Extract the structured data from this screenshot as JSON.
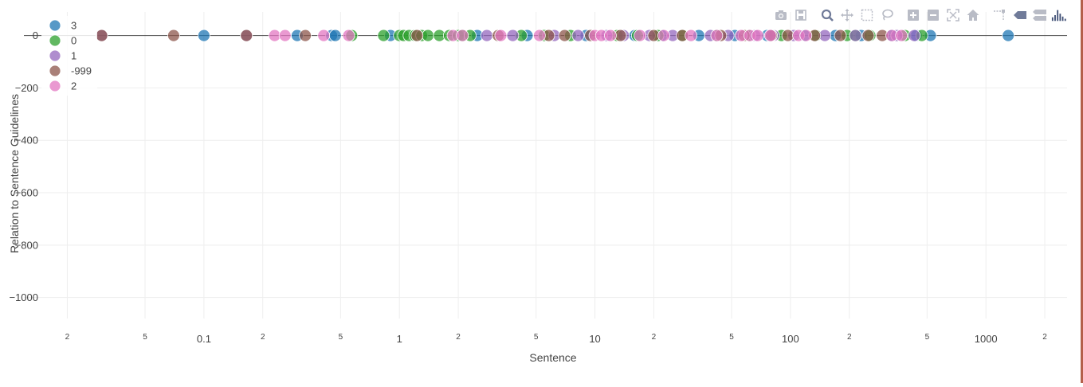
{
  "chart_data": {
    "type": "scatter",
    "title": "",
    "xlabel": "Sentence",
    "ylabel": "Relation to Sentence Guidelines",
    "x_scale": "log",
    "xlim": [
      0.012,
      2600
    ],
    "ylim": [
      -1080,
      90
    ],
    "grid": true,
    "legend_position": "top-left",
    "x_ticks": [
      {
        "value": 0.02,
        "label": "2"
      },
      {
        "value": 0.05,
        "label": "5"
      },
      {
        "value": 0.1,
        "label": "0.1"
      },
      {
        "value": 0.2,
        "label": "2"
      },
      {
        "value": 0.5,
        "label": "5"
      },
      {
        "value": 1,
        "label": "1"
      },
      {
        "value": 2,
        "label": "2"
      },
      {
        "value": 5,
        "label": "5"
      },
      {
        "value": 10,
        "label": "10"
      },
      {
        "value": 20,
        "label": "2"
      },
      {
        "value": 50,
        "label": "5"
      },
      {
        "value": 100,
        "label": "100"
      },
      {
        "value": 200,
        "label": "2"
      },
      {
        "value": 500,
        "label": "5"
      },
      {
        "value": 1000,
        "label": "1000"
      },
      {
        "value": 2000,
        "label": "2"
      }
    ],
    "y_ticks": [
      {
        "value": 0,
        "label": "0"
      },
      {
        "value": -200,
        "label": "−200"
      },
      {
        "value": -400,
        "label": "−400"
      },
      {
        "value": -600,
        "label": "−600"
      },
      {
        "value": -800,
        "label": "−800"
      },
      {
        "value": -1000,
        "label": "−1000"
      }
    ],
    "series": [
      {
        "name": "3",
        "color": "#1f77b4",
        "x": [
          0.1,
          0.3,
          0.45,
          0.47,
          0.9,
          2.5,
          4.5,
          9,
          16,
          22,
          34,
          52,
          76,
          118,
          170,
          230,
          330,
          440,
          520,
          1300
        ],
        "y": [
          0,
          0,
          0,
          0,
          0,
          0,
          0,
          0,
          0,
          0,
          0,
          0,
          0,
          0,
          0,
          0,
          0,
          0,
          0,
          0
        ]
      },
      {
        "name": "0",
        "color": "#2ca02c",
        "x": [
          0.57,
          0.83,
          1,
          1.05,
          1.12,
          1.2,
          1.3,
          1.4,
          1.6,
          1.8,
          2.0,
          2.1,
          2.3,
          4.2,
          5.5,
          7.5,
          13,
          16.5,
          21,
          28,
          42,
          61,
          90,
          135,
          195,
          215,
          255,
          385,
          470
        ],
        "y": [
          0,
          0,
          0,
          0,
          0,
          0,
          0,
          0,
          0,
          0,
          0,
          0,
          0,
          0,
          0,
          0,
          0,
          0,
          0,
          0,
          0,
          0,
          0,
          0,
          0,
          0,
          0,
          0,
          0
        ]
      },
      {
        "name": "1",
        "color": "#9467bd",
        "x": [
          0.03,
          0.165,
          2.8,
          3.8,
          6.2,
          8.2,
          11.5,
          14,
          19,
          25,
          39,
          48,
          66,
          82,
          104,
          150,
          215,
          350,
          430
        ],
        "y": [
          0,
          0,
          0,
          0,
          0,
          0,
          0,
          0,
          0,
          0,
          0,
          0,
          0,
          0,
          0,
          0,
          0,
          0,
          0
        ]
      },
      {
        "name": "-999",
        "color": "#8c564b",
        "x": [
          0.03,
          0.07,
          0.165,
          0.33,
          1.23,
          3.2,
          5.8,
          7.0,
          9.5,
          13.5,
          20,
          28,
          44,
          58,
          80,
          97,
          133,
          180,
          250,
          295
        ],
        "y": [
          0,
          0,
          0,
          0,
          0,
          0,
          0,
          0,
          0,
          0,
          0,
          0,
          0,
          0,
          0,
          0,
          0,
          0,
          0,
          0
        ]
      },
      {
        "name": "2",
        "color": "#e377c2",
        "x": [
          0.23,
          0.26,
          0.41,
          0.55,
          1.88,
          2.1,
          3.3,
          5.2,
          10,
          10.8,
          12,
          17,
          22.5,
          31,
          42,
          56,
          62,
          68,
          79,
          110,
          120,
          330,
          370
        ],
        "y": [
          0,
          0,
          0,
          0,
          0,
          0,
          0,
          0,
          0,
          0,
          0,
          0,
          0,
          0,
          0,
          0,
          0,
          0,
          0,
          0,
          0,
          0,
          0
        ]
      }
    ]
  },
  "modebar": {
    "buttons": [
      {
        "icon": "camera-icon",
        "title": "Download plot as a png"
      },
      {
        "icon": "save-icon",
        "title": "Save"
      },
      {
        "icon": "zoom-icon",
        "title": "Zoom"
      },
      {
        "icon": "pan-icon",
        "title": "Pan"
      },
      {
        "icon": "box-select-icon",
        "title": "Box Select"
      },
      {
        "icon": "lasso-icon",
        "title": "Lasso Select"
      },
      {
        "icon": "zoom-in-icon",
        "title": "Zoom in"
      },
      {
        "icon": "zoom-out-icon",
        "title": "Zoom out"
      },
      {
        "icon": "autoscale-icon",
        "title": "Autoscale"
      },
      {
        "icon": "home-icon",
        "title": "Reset axes"
      },
      {
        "icon": "spike-lines-icon",
        "title": "Toggle Spike Lines"
      },
      {
        "icon": "hover-closest-icon",
        "title": "Show closest data on hover"
      },
      {
        "icon": "hover-compare-icon",
        "title": "Compare data on hover"
      },
      {
        "icon": "plotly-logo-icon",
        "title": "Produced with Plotly"
      }
    ],
    "color": "#b9bcc6",
    "active_color": "#707b99",
    "logo_color": "#3f4f75"
  }
}
